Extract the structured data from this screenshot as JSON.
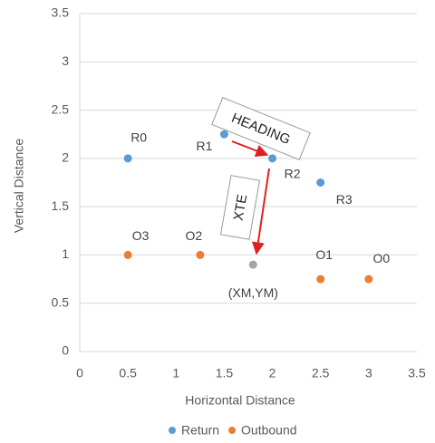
{
  "chart_data": {
    "type": "scatter",
    "xlabel": "Horizontal Distance",
    "ylabel": "Vertical Distance",
    "xlim": [
      0,
      3.5
    ],
    "xticks": [
      0,
      0.5,
      1,
      1.5,
      2,
      2.5,
      3,
      3.5
    ],
    "ylim": [
      0,
      3.5
    ],
    "yticks": [
      0,
      0.5,
      1,
      1.5,
      2,
      2.5,
      3,
      3.5
    ],
    "grid": true,
    "legend": "bottom",
    "series": [
      {
        "name": "Return",
        "color": "#5b9bd5",
        "x": [
          0.5,
          1.5,
          2,
          2.5
        ],
        "values": [
          2,
          2.25,
          2,
          1.75
        ],
        "labels": [
          "R0",
          "R1",
          "R2",
          "R3"
        ]
      },
      {
        "name": "Outbound",
        "color": "#ed7d31",
        "x": [
          0.5,
          1.25,
          2.5,
          3
        ],
        "values": [
          1,
          1,
          0.75,
          0.75
        ],
        "labels": [
          "O3",
          "O2",
          "O1",
          "O0"
        ]
      }
    ],
    "annotations": [
      {
        "text": "(XM,YM)",
        "x": 1.8,
        "y": 0.9,
        "color": "#a5a5a5"
      },
      {
        "text": "HEADING"
      },
      {
        "text": "XTE"
      }
    ]
  }
}
